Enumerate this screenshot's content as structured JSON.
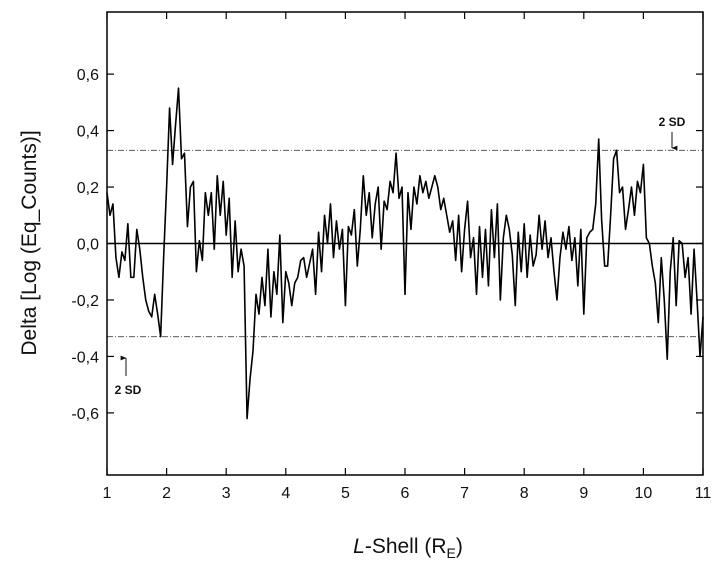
{
  "chart_data": {
    "type": "line",
    "ylabel": "Delta [Log (Eq_Counts)]",
    "xlabel": {
      "italic": "L",
      "main": "-Shell (R",
      "sub": "E",
      "end": ")"
    },
    "color": "#000000",
    "xlim": [
      1,
      11
    ],
    "xticks": [
      1,
      2,
      3,
      4,
      5,
      6,
      7,
      8,
      9,
      10,
      11
    ],
    "ylim": [
      -0.82,
      0.82
    ],
    "yticks": [
      {
        "value": -0.6,
        "label": "-0,6"
      },
      {
        "value": -0.4,
        "label": "-0,4"
      },
      {
        "value": -0.2,
        "label": "-0,2"
      },
      {
        "value": 0,
        "label": "0,0"
      },
      {
        "value": 0.2,
        "label": "0,2"
      },
      {
        "value": 0.4,
        "label": "0,4"
      },
      {
        "value": 0.6,
        "label": "0,6"
      }
    ],
    "reference_lines": [
      {
        "value": 0.33,
        "style": "dashdot"
      },
      {
        "value": -0.33,
        "style": "dashdot"
      },
      {
        "value": 0,
        "style": "solid"
      }
    ],
    "annotations": [
      "2 SD",
      "2 SD"
    ],
    "x": [
      1.0,
      1.05,
      1.1,
      1.15,
      1.2,
      1.25,
      1.3,
      1.35,
      1.4,
      1.45,
      1.5,
      1.55,
      1.6,
      1.65,
      1.7,
      1.75,
      1.8,
      1.85,
      1.9,
      1.95,
      2.0,
      2.05,
      2.1,
      2.15,
      2.2,
      2.25,
      2.3,
      2.35,
      2.4,
      2.45,
      2.5,
      2.55,
      2.6,
      2.65,
      2.7,
      2.75,
      2.8,
      2.85,
      2.9,
      2.95,
      3.0,
      3.05,
      3.1,
      3.15,
      3.2,
      3.25,
      3.3,
      3.35,
      3.4,
      3.45,
      3.5,
      3.55,
      3.6,
      3.65,
      3.7,
      3.75,
      3.8,
      3.85,
      3.9,
      3.95,
      4.0,
      4.05,
      4.1,
      4.15,
      4.2,
      4.25,
      4.3,
      4.35,
      4.4,
      4.45,
      4.5,
      4.55,
      4.6,
      4.65,
      4.7,
      4.75,
      4.8,
      4.85,
      4.9,
      4.95,
      5.0,
      5.05,
      5.1,
      5.15,
      5.2,
      5.25,
      5.3,
      5.35,
      5.4,
      5.45,
      5.5,
      5.55,
      5.6,
      5.65,
      5.7,
      5.75,
      5.8,
      5.85,
      5.9,
      5.95,
      6.0,
      6.05,
      6.1,
      6.15,
      6.2,
      6.25,
      6.3,
      6.35,
      6.4,
      6.45,
      6.5,
      6.55,
      6.6,
      6.65,
      6.7,
      6.75,
      6.8,
      6.85,
      6.9,
      6.95,
      7.0,
      7.05,
      7.1,
      7.15,
      7.2,
      7.25,
      7.3,
      7.35,
      7.4,
      7.45,
      7.5,
      7.55,
      7.6,
      7.65,
      7.7,
      7.75,
      7.8,
      7.85,
      7.9,
      7.95,
      8.0,
      8.05,
      8.1,
      8.15,
      8.2,
      8.25,
      8.3,
      8.35,
      8.4,
      8.45,
      8.5,
      8.55,
      8.6,
      8.65,
      8.7,
      8.75,
      8.8,
      8.85,
      8.9,
      8.95,
      9.0,
      9.05,
      9.1,
      9.15,
      9.2,
      9.25,
      9.3,
      9.35,
      9.4,
      9.45,
      9.5,
      9.55,
      9.6,
      9.65,
      9.7,
      9.75,
      9.8,
      9.85,
      9.9,
      9.95,
      10.0,
      10.05,
      10.1,
      10.15,
      10.2,
      10.25,
      10.3,
      10.35,
      10.4,
      10.45,
      10.5,
      10.55,
      10.6,
      10.65,
      10.7,
      10.75,
      10.8,
      10.85,
      10.9,
      10.95,
      11.0
    ],
    "values": [
      0.18,
      0.1,
      0.14,
      -0.05,
      -0.12,
      -0.03,
      -0.06,
      0.07,
      -0.12,
      -0.12,
      0.05,
      -0.02,
      -0.12,
      -0.2,
      -0.24,
      -0.26,
      -0.18,
      -0.25,
      -0.33,
      -0.05,
      0.2,
      0.48,
      0.28,
      0.42,
      0.55,
      0.3,
      0.32,
      0.06,
      0.2,
      0.22,
      -0.1,
      0.01,
      -0.06,
      0.18,
      0.1,
      0.18,
      -0.02,
      0.24,
      0.1,
      0.22,
      0.03,
      0.16,
      -0.12,
      0.08,
      -0.1,
      -0.02,
      -0.08,
      -0.62,
      -0.48,
      -0.38,
      -0.18,
      -0.25,
      -0.12,
      -0.22,
      -0.02,
      -0.26,
      -0.1,
      -0.18,
      0.03,
      -0.28,
      -0.1,
      -0.14,
      -0.22,
      -0.14,
      -0.12,
      -0.06,
      -0.05,
      -0.12,
      -0.07,
      -0.02,
      -0.18,
      0.04,
      -0.1,
      0.1,
      0.0,
      0.14,
      -0.05,
      0.08,
      -0.02,
      0.05,
      -0.22,
      0.06,
      0.03,
      0.12,
      -0.08,
      0.05,
      0.24,
      0.1,
      0.18,
      0.02,
      0.14,
      0.2,
      -0.02,
      0.15,
      0.12,
      0.22,
      0.18,
      0.32,
      0.16,
      0.2,
      -0.18,
      0.18,
      0.05,
      0.2,
      0.14,
      0.24,
      0.18,
      0.22,
      0.16,
      0.2,
      0.24,
      0.2,
      0.12,
      0.16,
      0.1,
      0.04,
      0.08,
      -0.06,
      0.1,
      -0.1,
      0.05,
      0.15,
      -0.05,
      0.02,
      -0.18,
      0.06,
      -0.12,
      0.05,
      -0.15,
      0.12,
      -0.05,
      0.14,
      -0.2,
      0.02,
      0.1,
      0.05,
      -0.04,
      -0.22,
      0.04,
      -0.1,
      0.07,
      -0.12,
      0.03,
      -0.08,
      -0.04,
      0.1,
      -0.02,
      0.08,
      -0.05,
      0.02,
      -0.1,
      -0.2,
      -0.05,
      0.04,
      -0.02,
      0.06,
      -0.06,
      0.02,
      -0.15,
      0.05,
      -0.25,
      0.02,
      0.04,
      0.05,
      0.14,
      0.37,
      0.08,
      -0.08,
      -0.08,
      0.1,
      0.3,
      0.33,
      0.18,
      0.2,
      0.05,
      0.12,
      0.2,
      0.1,
      0.22,
      0.18,
      0.28,
      0.02,
      0.0,
      -0.08,
      -0.14,
      -0.28,
      -0.05,
      -0.2,
      -0.41,
      -0.1,
      0.02,
      -0.22,
      0.01,
      0.0,
      -0.12,
      -0.05,
      -0.25,
      -0.02,
      -0.2,
      -0.4,
      -0.26
    ]
  }
}
